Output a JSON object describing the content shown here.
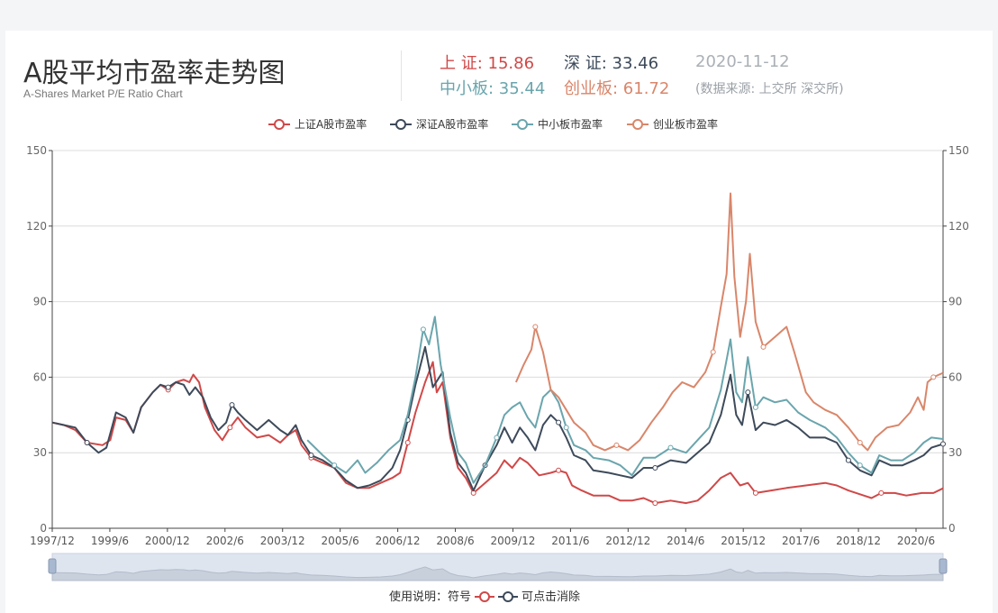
{
  "header": {
    "title": "A股平均市盈率走势图",
    "subtitle": "A-Shares Market P/E Ratio Chart",
    "date": "2020-11-12",
    "source_note": "(数据来源: 上交所 深交所)"
  },
  "stats": [
    {
      "label": "上 证: ",
      "value": "15.86",
      "color": "#d04848"
    },
    {
      "label": "深 证: ",
      "value": "33.46",
      "color": "#3d4a5a"
    },
    {
      "label": "中小板: ",
      "value": "35.44",
      "color": "#6aa5ad"
    },
    {
      "label": "创业板: ",
      "value": "61.72",
      "color": "#d9866a"
    }
  ],
  "footer": {
    "usage_prefix": "使用说明：符号",
    "usage_suffix": "可点击消除"
  },
  "chart_data": {
    "type": "line",
    "x_tick_labels": [
      "1997/12",
      "1999/6",
      "2000/12",
      "2002/6",
      "2003/12",
      "2005/6",
      "2006/12",
      "2008/6",
      "2009/12",
      "2011/6",
      "2012/12",
      "2014/6",
      "2015/12",
      "2017/6",
      "2018/12",
      "2020/6"
    ],
    "x_range": [
      1997.9,
      2020.95
    ],
    "ylim": [
      0,
      150
    ],
    "y_ticks": [
      0,
      30,
      60,
      90,
      120,
      150
    ],
    "dual_y_axis": true,
    "grid": true,
    "legend_position": "top-center",
    "series": [
      {
        "name": "上证A股市盈率",
        "color": "#d04848",
        "points": [
          [
            1997.9,
            42
          ],
          [
            1998.2,
            41
          ],
          [
            1998.5,
            39
          ],
          [
            1998.8,
            34
          ],
          [
            1999.2,
            33
          ],
          [
            1999.4,
            35
          ],
          [
            1999.55,
            44
          ],
          [
            1999.8,
            43
          ],
          [
            2000.0,
            38
          ],
          [
            2000.2,
            48
          ],
          [
            2000.5,
            54
          ],
          [
            2000.7,
            57
          ],
          [
            2000.9,
            55
          ],
          [
            2001.1,
            58
          ],
          [
            2001.3,
            59
          ],
          [
            2001.45,
            58
          ],
          [
            2001.55,
            61
          ],
          [
            2001.7,
            58
          ],
          [
            2001.85,
            48
          ],
          [
            2002.1,
            39
          ],
          [
            2002.3,
            35
          ],
          [
            2002.5,
            40
          ],
          [
            2002.7,
            44
          ],
          [
            2002.9,
            40
          ],
          [
            2003.2,
            36
          ],
          [
            2003.5,
            37
          ],
          [
            2003.8,
            34
          ],
          [
            2004.0,
            37
          ],
          [
            2004.2,
            39
          ],
          [
            2004.35,
            33
          ],
          [
            2004.6,
            28
          ],
          [
            2004.9,
            26
          ],
          [
            2005.2,
            24
          ],
          [
            2005.5,
            18
          ],
          [
            2005.8,
            16
          ],
          [
            2006.1,
            16
          ],
          [
            2006.4,
            18
          ],
          [
            2006.7,
            20
          ],
          [
            2006.9,
            22
          ],
          [
            2007.1,
            34
          ],
          [
            2007.3,
            46
          ],
          [
            2007.55,
            58
          ],
          [
            2007.75,
            66
          ],
          [
            2007.85,
            54
          ],
          [
            2008.0,
            58
          ],
          [
            2008.2,
            36
          ],
          [
            2008.4,
            24
          ],
          [
            2008.6,
            20
          ],
          [
            2008.8,
            14
          ],
          [
            2009.1,
            18
          ],
          [
            2009.4,
            22
          ],
          [
            2009.6,
            27
          ],
          [
            2009.8,
            24
          ],
          [
            2010.0,
            28
          ],
          [
            2010.2,
            26
          ],
          [
            2010.5,
            21
          ],
          [
            2010.8,
            22
          ],
          [
            2011.0,
            23
          ],
          [
            2011.2,
            22
          ],
          [
            2011.35,
            17
          ],
          [
            2011.6,
            15
          ],
          [
            2011.9,
            13
          ],
          [
            2012.3,
            13
          ],
          [
            2012.6,
            11
          ],
          [
            2012.9,
            11
          ],
          [
            2013.2,
            12
          ],
          [
            2013.5,
            10
          ],
          [
            2013.9,
            11
          ],
          [
            2014.3,
            10
          ],
          [
            2014.6,
            11
          ],
          [
            2014.9,
            15
          ],
          [
            2015.2,
            20
          ],
          [
            2015.45,
            22
          ],
          [
            2015.7,
            17
          ],
          [
            2015.9,
            18
          ],
          [
            2016.1,
            14
          ],
          [
            2016.5,
            15
          ],
          [
            2016.9,
            16
          ],
          [
            2017.4,
            17
          ],
          [
            2017.9,
            18
          ],
          [
            2018.2,
            17
          ],
          [
            2018.5,
            15
          ],
          [
            2018.9,
            13
          ],
          [
            2019.1,
            12
          ],
          [
            2019.35,
            14
          ],
          [
            2019.7,
            14
          ],
          [
            2020.0,
            13
          ],
          [
            2020.4,
            14
          ],
          [
            2020.7,
            14
          ],
          [
            2020.95,
            15.86
          ]
        ]
      },
      {
        "name": "深证A股市盈率",
        "color": "#3d4a5a",
        "points": [
          [
            1997.9,
            42
          ],
          [
            1998.2,
            41
          ],
          [
            1998.5,
            40
          ],
          [
            1998.8,
            34
          ],
          [
            1999.1,
            30
          ],
          [
            1999.3,
            32
          ],
          [
            1999.55,
            46
          ],
          [
            1999.8,
            44
          ],
          [
            2000.0,
            38
          ],
          [
            2000.2,
            48
          ],
          [
            2000.5,
            54
          ],
          [
            2000.7,
            57
          ],
          [
            2000.9,
            56
          ],
          [
            2001.1,
            58
          ],
          [
            2001.3,
            57
          ],
          [
            2001.45,
            53
          ],
          [
            2001.6,
            56
          ],
          [
            2001.8,
            52
          ],
          [
            2002.0,
            44
          ],
          [
            2002.2,
            39
          ],
          [
            2002.4,
            42
          ],
          [
            2002.55,
            49
          ],
          [
            2002.7,
            46
          ],
          [
            2002.9,
            43
          ],
          [
            2003.2,
            39
          ],
          [
            2003.5,
            43
          ],
          [
            2003.8,
            39
          ],
          [
            2004.0,
            37
          ],
          [
            2004.2,
            41
          ],
          [
            2004.35,
            35
          ],
          [
            2004.6,
            29
          ],
          [
            2004.9,
            27
          ],
          [
            2005.2,
            24
          ],
          [
            2005.5,
            19
          ],
          [
            2005.8,
            16
          ],
          [
            2006.1,
            17
          ],
          [
            2006.4,
            19
          ],
          [
            2006.7,
            24
          ],
          [
            2006.9,
            31
          ],
          [
            2007.1,
            43
          ],
          [
            2007.3,
            57
          ],
          [
            2007.55,
            72
          ],
          [
            2007.75,
            56
          ],
          [
            2008.0,
            62
          ],
          [
            2008.2,
            38
          ],
          [
            2008.4,
            26
          ],
          [
            2008.6,
            22
          ],
          [
            2008.8,
            15
          ],
          [
            2009.1,
            25
          ],
          [
            2009.4,
            33
          ],
          [
            2009.6,
            40
          ],
          [
            2009.8,
            34
          ],
          [
            2010.0,
            40
          ],
          [
            2010.2,
            36
          ],
          [
            2010.4,
            31
          ],
          [
            2010.6,
            41
          ],
          [
            2010.8,
            45
          ],
          [
            2011.0,
            42
          ],
          [
            2011.2,
            36
          ],
          [
            2011.4,
            29
          ],
          [
            2011.7,
            27
          ],
          [
            2011.9,
            23
          ],
          [
            2012.3,
            22
          ],
          [
            2012.6,
            21
          ],
          [
            2012.9,
            20
          ],
          [
            2013.2,
            24
          ],
          [
            2013.5,
            24
          ],
          [
            2013.9,
            27
          ],
          [
            2014.3,
            26
          ],
          [
            2014.6,
            30
          ],
          [
            2014.9,
            34
          ],
          [
            2015.2,
            45
          ],
          [
            2015.45,
            61
          ],
          [
            2015.6,
            45
          ],
          [
            2015.75,
            41
          ],
          [
            2015.9,
            54
          ],
          [
            2016.1,
            39
          ],
          [
            2016.3,
            42
          ],
          [
            2016.6,
            41
          ],
          [
            2016.9,
            43
          ],
          [
            2017.2,
            40
          ],
          [
            2017.5,
            36
          ],
          [
            2017.9,
            36
          ],
          [
            2018.2,
            34
          ],
          [
            2018.5,
            27
          ],
          [
            2018.8,
            23
          ],
          [
            2019.1,
            21
          ],
          [
            2019.3,
            27
          ],
          [
            2019.6,
            25
          ],
          [
            2019.9,
            25
          ],
          [
            2020.2,
            27
          ],
          [
            2020.45,
            29
          ],
          [
            2020.65,
            32
          ],
          [
            2020.95,
            33.46
          ]
        ]
      },
      {
        "name": "中小板市盈率",
        "color": "#6aa5ad",
        "points": [
          [
            2004.5,
            35
          ],
          [
            2004.7,
            32
          ],
          [
            2004.9,
            29
          ],
          [
            2005.2,
            25
          ],
          [
            2005.5,
            22
          ],
          [
            2005.8,
            27
          ],
          [
            2006.0,
            22
          ],
          [
            2006.3,
            26
          ],
          [
            2006.6,
            31
          ],
          [
            2006.9,
            35
          ],
          [
            2007.1,
            45
          ],
          [
            2007.3,
            60
          ],
          [
            2007.5,
            79
          ],
          [
            2007.65,
            73
          ],
          [
            2007.8,
            84
          ],
          [
            2007.95,
            65
          ],
          [
            2008.2,
            44
          ],
          [
            2008.4,
            30
          ],
          [
            2008.6,
            26
          ],
          [
            2008.8,
            18
          ],
          [
            2009.1,
            25
          ],
          [
            2009.4,
            36
          ],
          [
            2009.6,
            45
          ],
          [
            2009.8,
            48
          ],
          [
            2010.0,
            50
          ],
          [
            2010.2,
            44
          ],
          [
            2010.4,
            40
          ],
          [
            2010.6,
            52
          ],
          [
            2010.8,
            55
          ],
          [
            2011.0,
            50
          ],
          [
            2011.2,
            40
          ],
          [
            2011.4,
            33
          ],
          [
            2011.7,
            31
          ],
          [
            2011.9,
            28
          ],
          [
            2012.3,
            27
          ],
          [
            2012.6,
            25
          ],
          [
            2012.9,
            21
          ],
          [
            2013.2,
            28
          ],
          [
            2013.5,
            28
          ],
          [
            2013.9,
            32
          ],
          [
            2014.3,
            30
          ],
          [
            2014.6,
            35
          ],
          [
            2014.9,
            40
          ],
          [
            2015.2,
            55
          ],
          [
            2015.45,
            75
          ],
          [
            2015.6,
            54
          ],
          [
            2015.75,
            50
          ],
          [
            2015.9,
            68
          ],
          [
            2016.1,
            48
          ],
          [
            2016.3,
            52
          ],
          [
            2016.6,
            50
          ],
          [
            2016.9,
            51
          ],
          [
            2017.2,
            46
          ],
          [
            2017.5,
            43
          ],
          [
            2017.9,
            40
          ],
          [
            2018.2,
            36
          ],
          [
            2018.5,
            30
          ],
          [
            2018.8,
            25
          ],
          [
            2019.1,
            22
          ],
          [
            2019.3,
            29
          ],
          [
            2019.6,
            27
          ],
          [
            2019.9,
            27
          ],
          [
            2020.2,
            30
          ],
          [
            2020.45,
            34
          ],
          [
            2020.65,
            36
          ],
          [
            2020.95,
            35.44
          ]
        ]
      },
      {
        "name": "创业板市盈率",
        "color": "#d9866a",
        "points": [
          [
            2009.9,
            58
          ],
          [
            2010.1,
            65
          ],
          [
            2010.3,
            71
          ],
          [
            2010.4,
            80
          ],
          [
            2010.6,
            70
          ],
          [
            2010.8,
            55
          ],
          [
            2011.0,
            52
          ],
          [
            2011.2,
            47
          ],
          [
            2011.4,
            42
          ],
          [
            2011.7,
            38
          ],
          [
            2011.9,
            33
          ],
          [
            2012.2,
            31
          ],
          [
            2012.5,
            33
          ],
          [
            2012.8,
            31
          ],
          [
            2013.1,
            35
          ],
          [
            2013.4,
            42
          ],
          [
            2013.7,
            48
          ],
          [
            2013.95,
            54
          ],
          [
            2014.2,
            58
          ],
          [
            2014.5,
            56
          ],
          [
            2014.8,
            62
          ],
          [
            2015.0,
            70
          ],
          [
            2015.2,
            88
          ],
          [
            2015.35,
            101
          ],
          [
            2015.45,
            133
          ],
          [
            2015.55,
            100
          ],
          [
            2015.7,
            76
          ],
          [
            2015.85,
            90
          ],
          [
            2015.95,
            109
          ],
          [
            2016.1,
            82
          ],
          [
            2016.3,
            72
          ],
          [
            2016.6,
            76
          ],
          [
            2016.9,
            80
          ],
          [
            2017.1,
            70
          ],
          [
            2017.4,
            54
          ],
          [
            2017.6,
            50
          ],
          [
            2017.9,
            47
          ],
          [
            2018.2,
            45
          ],
          [
            2018.5,
            40
          ],
          [
            2018.8,
            34
          ],
          [
            2019.0,
            31
          ],
          [
            2019.2,
            36
          ],
          [
            2019.5,
            40
          ],
          [
            2019.8,
            41
          ],
          [
            2020.1,
            46
          ],
          [
            2020.3,
            52
          ],
          [
            2020.45,
            47
          ],
          [
            2020.55,
            58
          ],
          [
            2020.7,
            60
          ],
          [
            2020.95,
            61.72
          ]
        ]
      }
    ]
  }
}
